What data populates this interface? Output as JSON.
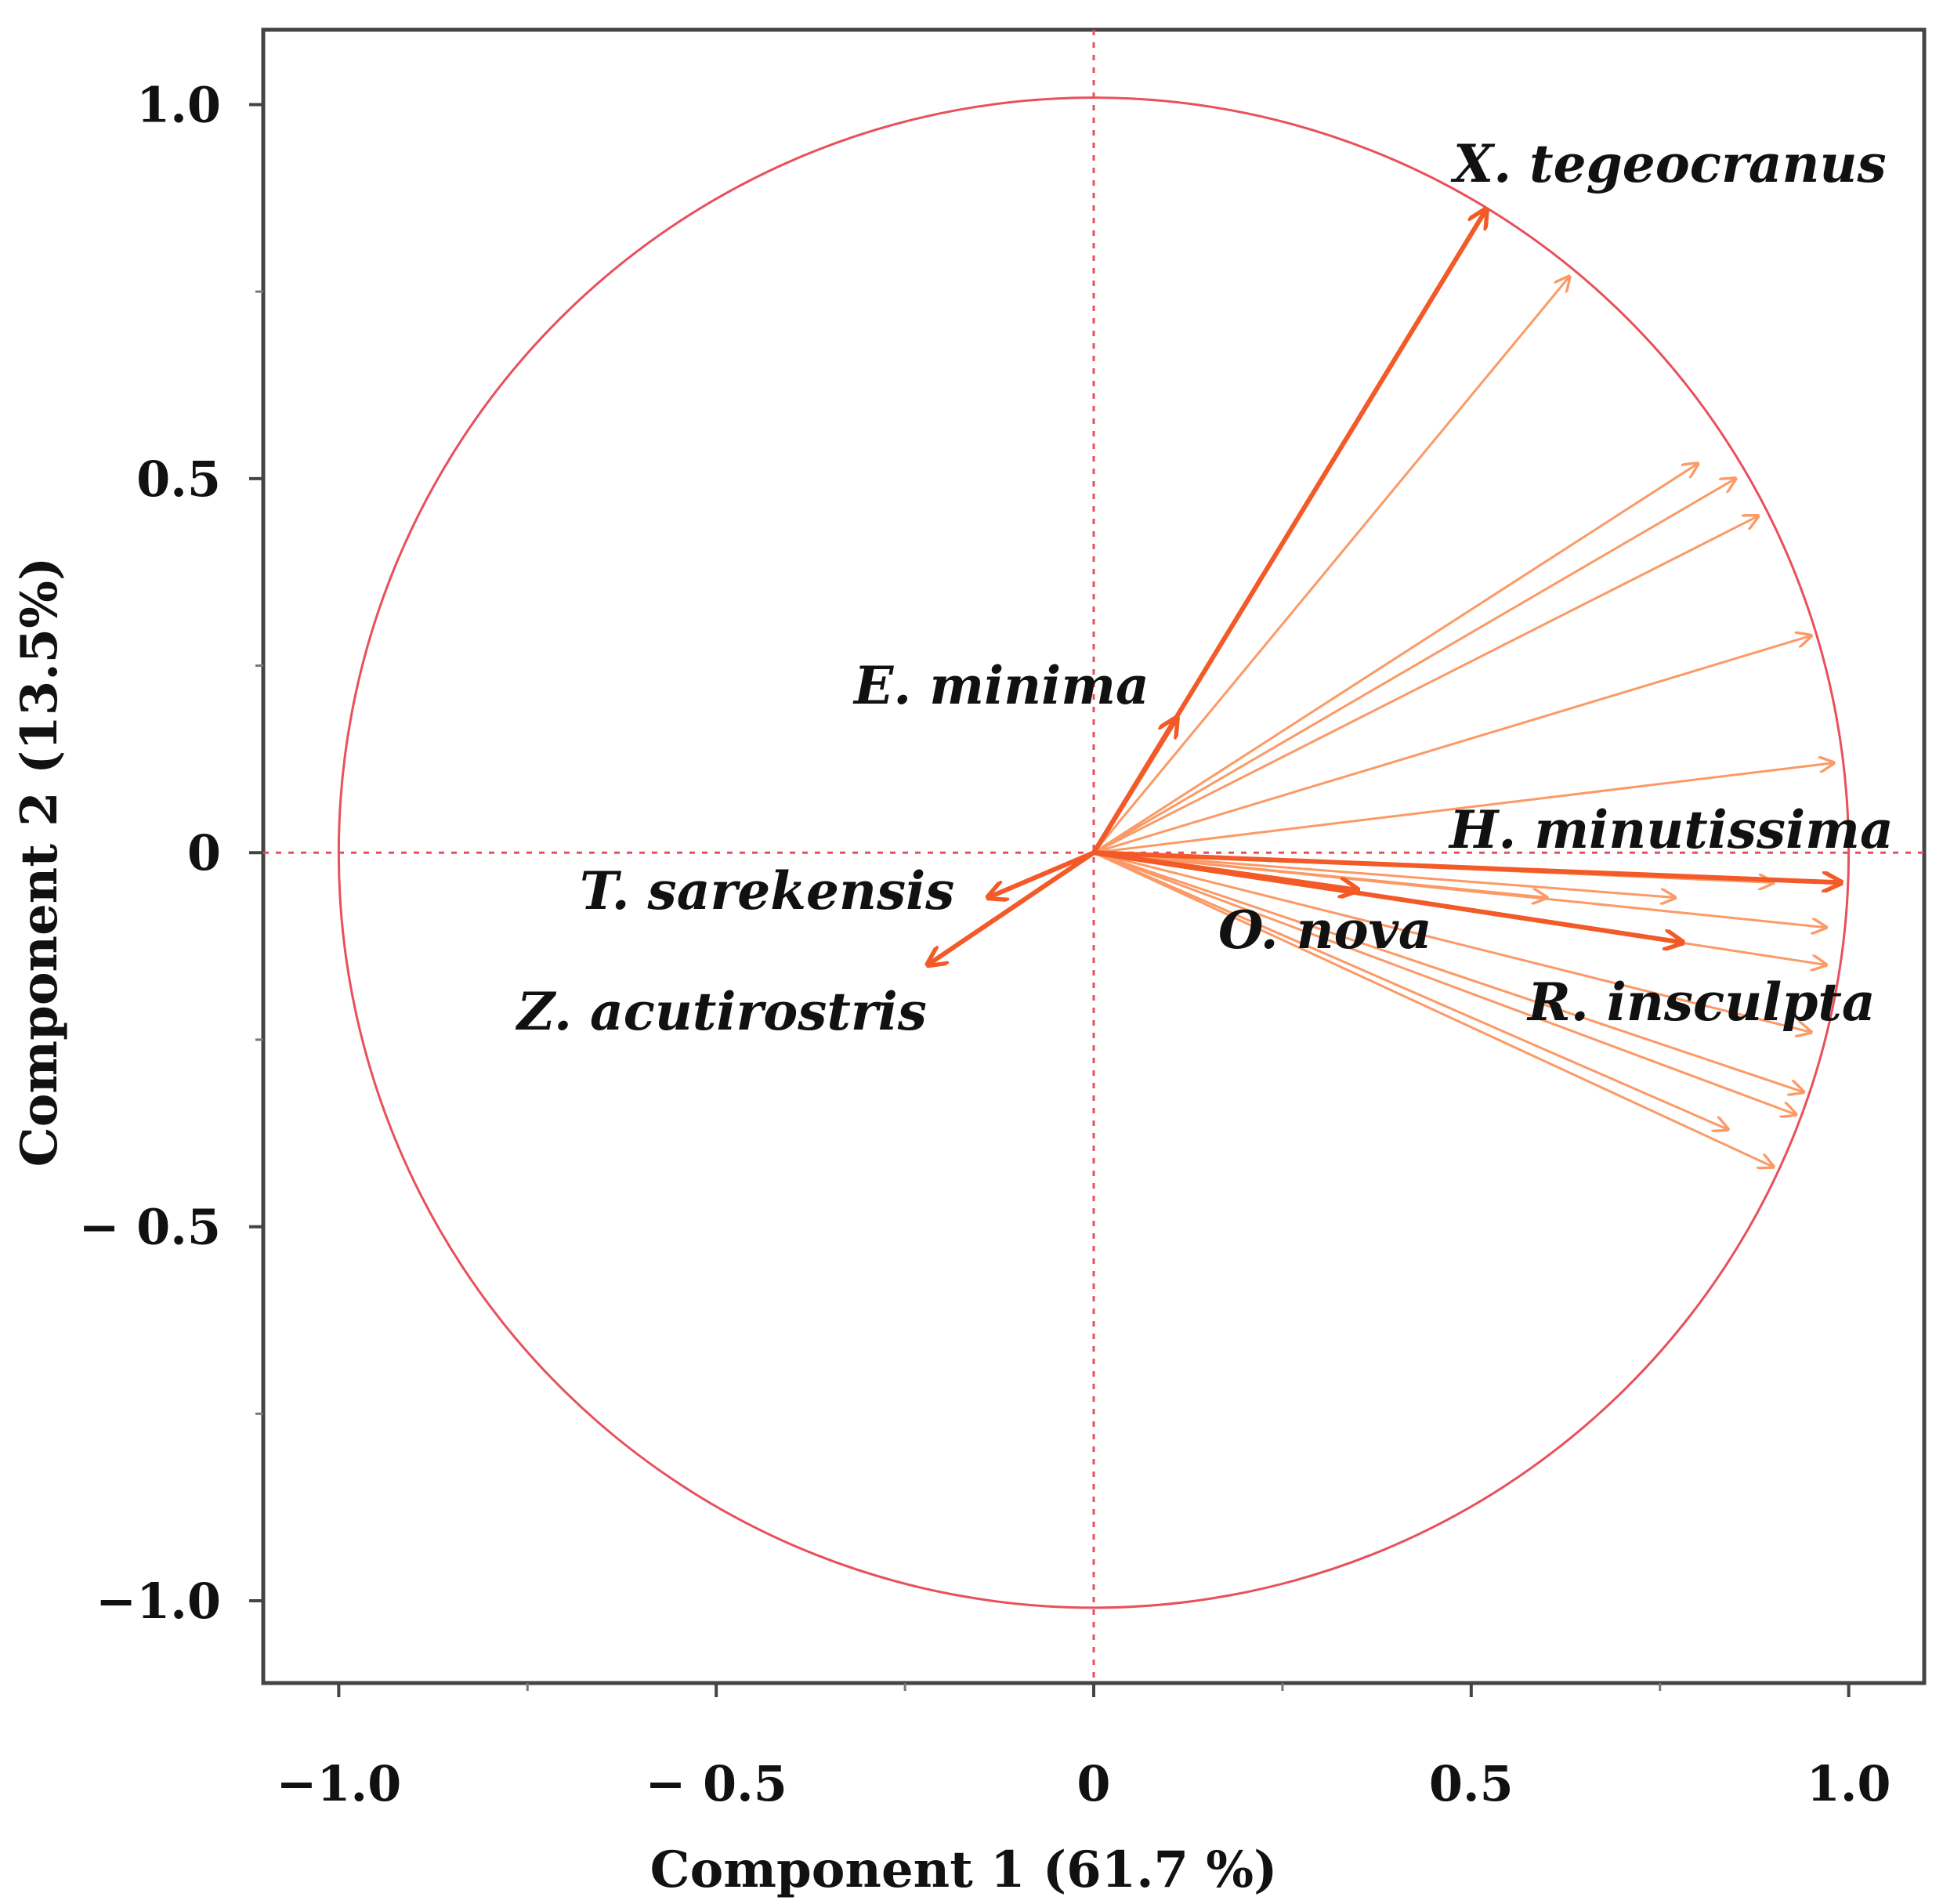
{
  "chart_data": {
    "type": "scatter",
    "subtype": "pca-correlation-circle",
    "xlabel": "Component 1  (61.7 %)",
    "ylabel": "Component 2  (13.5%)",
    "xlim": [
      -1.1,
      1.1
    ],
    "ylim": [
      -1.11,
      1.1
    ],
    "x_ticks": [
      {
        "value": -1.0,
        "label": "−1.0"
      },
      {
        "value": -0.5,
        "label": "− 0.5"
      },
      {
        "value": 0,
        "label": "0"
      },
      {
        "value": 0.5,
        "label": "0.5"
      },
      {
        "value": 1.0,
        "label": "1.0"
      }
    ],
    "y_ticks": [
      {
        "value": 1.0,
        "label": "1.0"
      },
      {
        "value": 0.5,
        "label": "0.5"
      },
      {
        "value": 0,
        "label": "0"
      },
      {
        "value": -0.5,
        "label": "− 0.5"
      },
      {
        "value": -1.0,
        "label": "−1.0"
      }
    ],
    "minor_ticks": [
      -0.75,
      -0.25,
      0.25,
      0.75
    ],
    "unit_circle_radius": 1.0,
    "colors": {
      "circle": "#e8505b",
      "axis_lines": "#e8505b",
      "frame": "#444444",
      "labeled_arrow": "#f25a28",
      "unlabeled_arrow": "#fb9a66"
    },
    "labeled_vectors": [
      {
        "name": "X. tegeocranus",
        "x": 0.52,
        "y": 0.86
      },
      {
        "name": "E. minima",
        "x": 0.11,
        "y": 0.18
      },
      {
        "name": "T. sarekensis",
        "x": -0.14,
        "y": -0.06
      },
      {
        "name": "Z. acutirostris",
        "x": -0.22,
        "y": -0.15
      },
      {
        "name": "H. minutissima",
        "x": 0.99,
        "y": -0.04
      },
      {
        "name": "O. nova",
        "x": 0.35,
        "y": -0.05
      },
      {
        "name": "R. insculpta",
        "x": 0.78,
        "y": -0.12
      }
    ],
    "other_vectors": [
      {
        "x": 0.63,
        "y": 0.77
      },
      {
        "x": 0.8,
        "y": 0.52
      },
      {
        "x": 0.85,
        "y": 0.5
      },
      {
        "x": 0.88,
        "y": 0.45
      },
      {
        "x": 0.95,
        "y": 0.29
      },
      {
        "x": 0.98,
        "y": 0.12
      },
      {
        "x": 0.6,
        "y": -0.06
      },
      {
        "x": 0.77,
        "y": -0.06
      },
      {
        "x": 0.9,
        "y": -0.04
      },
      {
        "x": 0.97,
        "y": -0.1
      },
      {
        "x": 0.97,
        "y": -0.15
      },
      {
        "x": 0.95,
        "y": -0.24
      },
      {
        "x": 0.94,
        "y": -0.32
      },
      {
        "x": 0.93,
        "y": -0.35
      },
      {
        "x": 0.84,
        "y": -0.37
      },
      {
        "x": 0.9,
        "y": -0.42
      }
    ]
  }
}
